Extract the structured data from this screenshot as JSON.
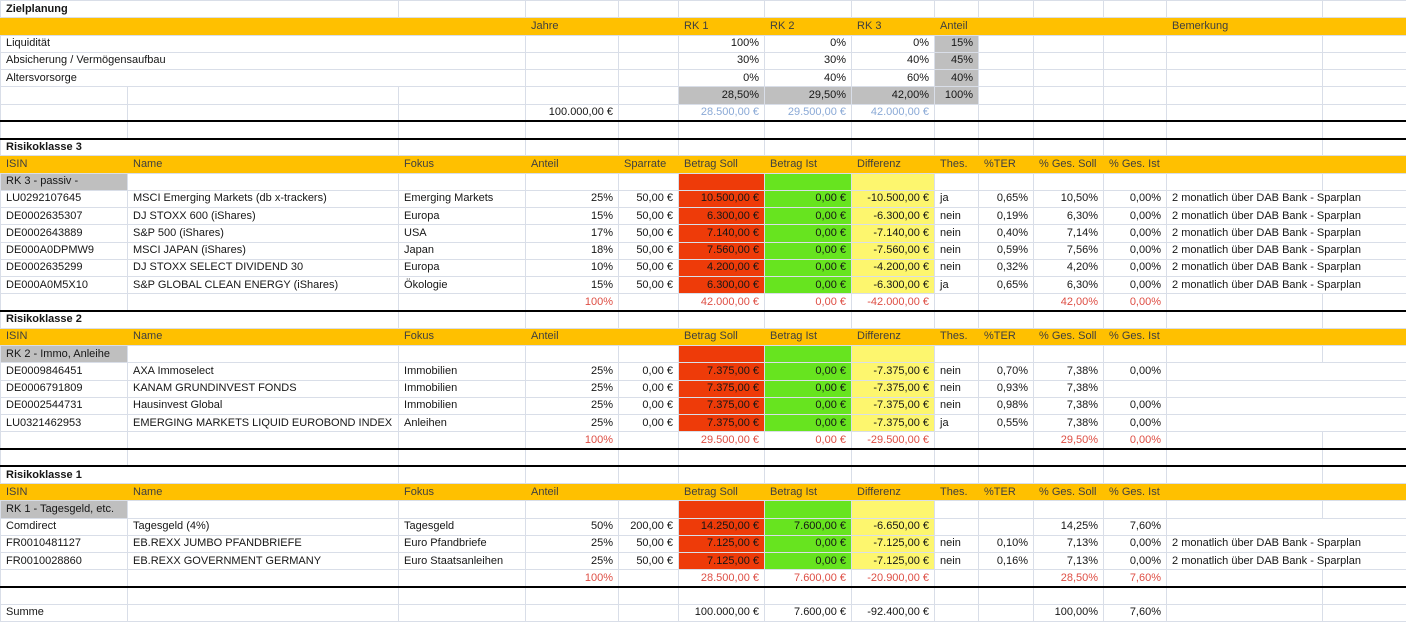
{
  "colors": {
    "header_bg": "#FFC000",
    "soll_bg": "#EE3B09",
    "ist_bg": "#67E41F",
    "differenz_bg": "#FDF66E",
    "muted_bg": "#BFBFBF",
    "totals_text": "#DE4E44",
    "formula_text": "#8AA9D6",
    "gridline": "#d9dee8"
  },
  "target_plan": {
    "title": "Zielplanung",
    "columns": {
      "jahre": "Jahre",
      "rk1": "RK 1",
      "rk2": "RK 2",
      "rk3": "RK 3",
      "anteil": "Anteil",
      "bemerkung": "Bemerkung"
    },
    "rows": [
      {
        "label": "Liquidität",
        "rk1": "100%",
        "rk2": "0%",
        "rk3": "0%",
        "anteil": "15%"
      },
      {
        "label": "Absicherung / Vermögensaufbau",
        "rk1": "30%",
        "rk2": "30%",
        "rk3": "40%",
        "anteil": "45%"
      },
      {
        "label": "Altersvorsorge",
        "rk1": "0%",
        "rk2": "40%",
        "rk3": "60%",
        "anteil": "40%"
      }
    ],
    "totals": {
      "rk1": "28,50%",
      "rk2": "29,50%",
      "rk3": "42,00%",
      "anteil": "100%"
    },
    "amounts": {
      "total": "100.000,00 €",
      "rk1": "28.500,00 €",
      "rk2": "29.500,00 €",
      "rk3": "42.000,00 €"
    }
  },
  "sections": [
    {
      "title": "Risikoklasse 3",
      "subtitle": "RK 3 - passiv -",
      "columns": {
        "isin": "ISIN",
        "name": "Name",
        "fokus": "Fokus",
        "anteil": "Anteil",
        "sparrate": "Sparrate",
        "soll": "Betrag Soll",
        "ist": "Betrag Ist",
        "differenz": "Differenz",
        "thes": "Thes.",
        "ter": "%TER",
        "ges_soll": "% Ges. Soll",
        "ges_ist": "% Ges. Ist"
      },
      "rows": [
        {
          "isin": "LU0292107645",
          "name": "MSCI Emerging Markets (db x-trackers)",
          "fokus": "Emerging Markets",
          "anteil": "25%",
          "sparrate": "50,00 €",
          "soll": "10.500,00 €",
          "ist": "0,00 €",
          "differenz": "-10.500,00 €",
          "thes": "ja",
          "ter": "0,65%",
          "ges_soll": "10,50%",
          "ges_ist": "0,00%",
          "bemerkung": "2 monatlich über DAB Bank - Sparplan"
        },
        {
          "isin": "DE0002635307",
          "name": "DJ STOXX 600 (iShares)",
          "fokus": "Europa",
          "anteil": "15%",
          "sparrate": "50,00 €",
          "soll": "6.300,00 €",
          "ist": "0,00 €",
          "differenz": "-6.300,00 €",
          "thes": "nein",
          "ter": "0,19%",
          "ges_soll": "6,30%",
          "ges_ist": "0,00%",
          "bemerkung": "2 monatlich über DAB Bank - Sparplan"
        },
        {
          "isin": "DE0002643889",
          "name": "S&P 500 (iShares)",
          "fokus": "USA",
          "anteil": "17%",
          "sparrate": "50,00 €",
          "soll": "7.140,00 €",
          "ist": "0,00 €",
          "differenz": "-7.140,00 €",
          "thes": "nein",
          "ter": "0,40%",
          "ges_soll": "7,14%",
          "ges_ist": "0,00%",
          "bemerkung": "2 monatlich über DAB Bank - Sparplan"
        },
        {
          "isin": "DE000A0DPMW9",
          "name": "MSCI JAPAN (iShares)",
          "fokus": "Japan",
          "anteil": "18%",
          "sparrate": "50,00 €",
          "soll": "7.560,00 €",
          "ist": "0,00 €",
          "differenz": "-7.560,00 €",
          "thes": "nein",
          "ter": "0,59%",
          "ges_soll": "7,56%",
          "ges_ist": "0,00%",
          "bemerkung": "2 monatlich über DAB Bank - Sparplan"
        },
        {
          "isin": "DE0002635299",
          "name": "DJ STOXX SELECT DIVIDEND 30",
          "fokus": "Europa",
          "anteil": "10%",
          "sparrate": "50,00 €",
          "soll": "4.200,00 €",
          "ist": "0,00 €",
          "differenz": "-4.200,00 €",
          "thes": "nein",
          "ter": "0,32%",
          "ges_soll": "4,20%",
          "ges_ist": "0,00%",
          "bemerkung": "2 monatlich über DAB Bank - Sparplan"
        },
        {
          "isin": "DE000A0M5X10",
          "name": "S&P GLOBAL CLEAN ENERGY (iShares)",
          "fokus": "Ökologie",
          "anteil": "15%",
          "sparrate": "50,00 €",
          "soll": "6.300,00 €",
          "ist": "0,00 €",
          "differenz": "-6.300,00 €",
          "thes": "ja",
          "ter": "0,65%",
          "ges_soll": "6,30%",
          "ges_ist": "0,00%",
          "bemerkung": "2 monatlich über DAB Bank - Sparplan"
        }
      ],
      "totals": {
        "anteil": "100%",
        "soll": "42.000,00 €",
        "ist": "0,00 €",
        "differenz": "-42.000,00 €",
        "ges_soll": "42,00%",
        "ges_ist": "0,00%"
      }
    },
    {
      "title": "Risikoklasse 2",
      "subtitle": "RK 2 - Immo, Anleihe",
      "columns": {
        "isin": "ISIN",
        "name": "Name",
        "fokus": "Fokus",
        "anteil": "Anteil",
        "sparrate": "",
        "soll": "Betrag Soll",
        "ist": "Betrag Ist",
        "differenz": "Differenz",
        "thes": "Thes.",
        "ter": "%TER",
        "ges_soll": "% Ges. Soll",
        "ges_ist": "% Ges. Ist"
      },
      "rows": [
        {
          "isin": "DE0009846451",
          "name": "AXA Immoselect",
          "fokus": "Immobilien",
          "anteil": "25%",
          "sparrate": "0,00 €",
          "soll": "7.375,00 €",
          "ist": "0,00 €",
          "differenz": "-7.375,00 €",
          "thes": "nein",
          "ter": "0,70%",
          "ges_soll": "7,38%",
          "ges_ist": "0,00%",
          "bemerkung": ""
        },
        {
          "isin": "DE0006791809",
          "name": "KANAM GRUNDINVEST FONDS",
          "fokus": "Immobilien",
          "anteil": "25%",
          "sparrate": "0,00 €",
          "soll": "7.375,00 €",
          "ist": "0,00 €",
          "differenz": "-7.375,00 €",
          "thes": "nein",
          "ter": "0,93%",
          "ges_soll": "7,38%",
          "ges_ist": "",
          "bemerkung": ""
        },
        {
          "isin": "DE0002544731",
          "name": "Hausinvest Global",
          "fokus": "Immobilien",
          "anteil": "25%",
          "sparrate": "0,00 €",
          "soll": "7.375,00 €",
          "ist": "0,00 €",
          "differenz": "-7.375,00 €",
          "thes": "nein",
          "ter": "0,98%",
          "ges_soll": "7,38%",
          "ges_ist": "0,00%",
          "bemerkung": ""
        },
        {
          "isin": "LU0321462953",
          "name": "EMERGING MARKETS LIQUID EUROBOND INDEX",
          "fokus": "Anleihen",
          "anteil": "25%",
          "sparrate": "0,00 €",
          "soll": "7.375,00 €",
          "ist": "0,00 €",
          "differenz": "-7.375,00 €",
          "thes": "ja",
          "ter": "0,55%",
          "ges_soll": "7,38%",
          "ges_ist": "0,00%",
          "bemerkung": ""
        }
      ],
      "totals": {
        "anteil": "100%",
        "soll": "29.500,00 €",
        "ist": "0,00 €",
        "differenz": "-29.500,00 €",
        "ges_soll": "29,50%",
        "ges_ist": "0,00%"
      }
    },
    {
      "title": "Risikoklasse 1",
      "subtitle": "RK 1 - Tagesgeld, etc.",
      "columns": {
        "isin": "ISIN",
        "name": "Name",
        "fokus": "Fokus",
        "anteil": "Anteil",
        "sparrate": "",
        "soll": "Betrag Soll",
        "ist": "Betrag Ist",
        "differenz": "Differenz",
        "thes": "Thes.",
        "ter": "%TER",
        "ges_soll": "% Ges. Soll",
        "ges_ist": "% Ges. Ist"
      },
      "rows": [
        {
          "isin": "Comdirect",
          "name": "Tagesgeld (4%)",
          "fokus": "Tagesgeld",
          "anteil": "50%",
          "sparrate": "200,00 €",
          "soll": "14.250,00 €",
          "ist": "7.600,00 €",
          "differenz": "-6.650,00 €",
          "thes": "",
          "ter": "",
          "ges_soll": "14,25%",
          "ges_ist": "7,60%",
          "bemerkung": ""
        },
        {
          "isin": "FR0010481127",
          "name": "EB.REXX JUMBO PFANDBRIEFE",
          "fokus": "Euro Pfandbriefe",
          "anteil": "25%",
          "sparrate": "50,00 €",
          "soll": "7.125,00 €",
          "ist": "0,00 €",
          "differenz": "-7.125,00 €",
          "thes": "nein",
          "ter": "0,10%",
          "ges_soll": "7,13%",
          "ges_ist": "0,00%",
          "bemerkung": "2 monatlich über DAB Bank - Sparplan"
        },
        {
          "isin": "FR0010028860",
          "name": "EB.REXX GOVERNMENT GERMANY",
          "fokus": "Euro Staatsanleihen",
          "anteil": "25%",
          "sparrate": "50,00 €",
          "soll": "7.125,00 €",
          "ist": "0,00 €",
          "differenz": "-7.125,00 €",
          "thes": "nein",
          "ter": "0,16%",
          "ges_soll": "7,13%",
          "ges_ist": "0,00%",
          "bemerkung": "2 monatlich über DAB Bank - Sparplan"
        }
      ],
      "totals": {
        "anteil": "100%",
        "soll": "28.500,00 €",
        "ist": "7.600,00 €",
        "differenz": "-20.900,00 €",
        "ges_soll": "28,50%",
        "ges_ist": "7,60%"
      }
    }
  ],
  "summary": {
    "label": "Summe",
    "soll": "100.000,00 €",
    "ist": "7.600,00 €",
    "differenz": "-92.400,00 €",
    "ges_soll": "100,00%",
    "ges_ist": "7,60%"
  }
}
